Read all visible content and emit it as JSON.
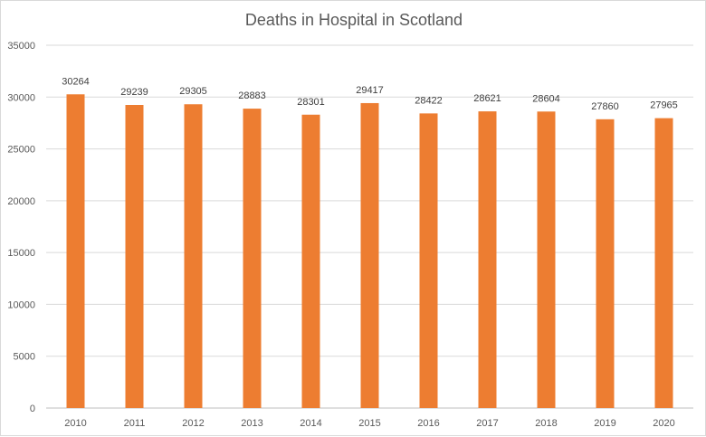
{
  "chart_data": {
    "type": "bar",
    "title": "Deaths in Hospital in Scotland",
    "xlabel": "",
    "ylabel": "",
    "categories": [
      "2010",
      "2011",
      "2012",
      "2013",
      "2014",
      "2015",
      "2016",
      "2017",
      "2018",
      "2019",
      "2020"
    ],
    "values": [
      30264,
      29239,
      29305,
      28883,
      28301,
      29417,
      28422,
      28621,
      28604,
      27860,
      27965
    ],
    "ylim": [
      0,
      35000
    ],
    "yticks": [
      0,
      5000,
      10000,
      15000,
      20000,
      25000,
      30000,
      35000
    ],
    "grid": true,
    "legend": "none",
    "bar_color": "#ed7d31",
    "data_labels": true
  }
}
